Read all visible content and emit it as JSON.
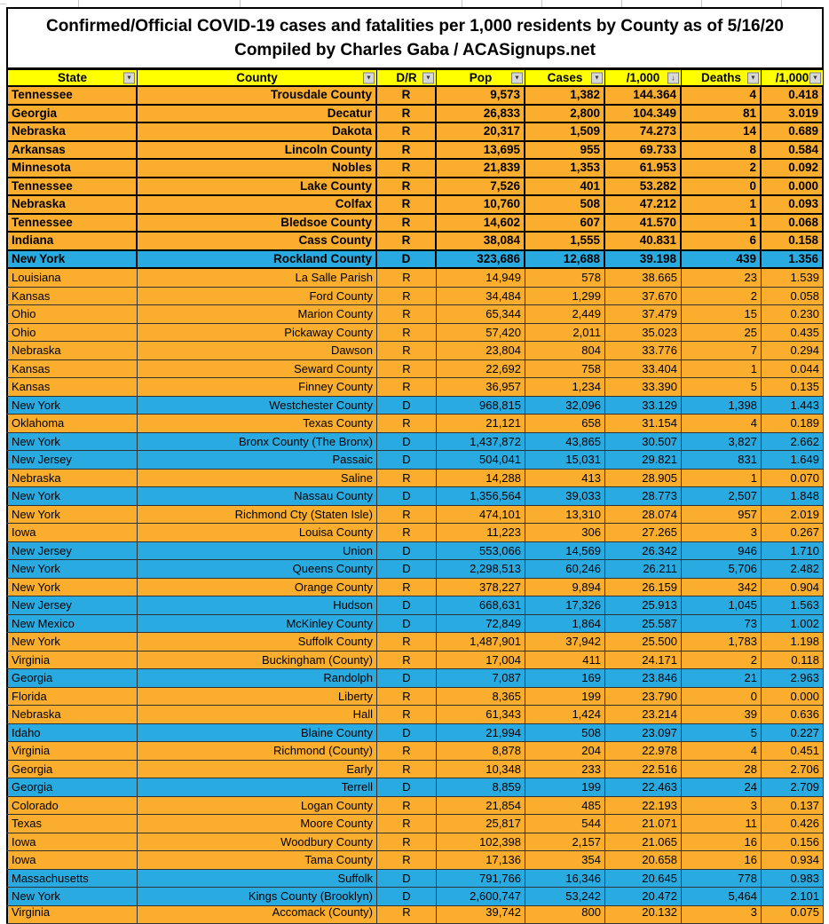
{
  "title": {
    "line1": "Confirmed/Official COVID-19 cases and fatalities per 1,000 residents by County as of 5/16/20",
    "line2": "Compiled by Charles Gaba / ACASignups.net"
  },
  "colors": {
    "republican_row": "#FBAE2D",
    "democrat_row": "#29ABE2",
    "header_bg": "#FFFF00"
  },
  "icons": {
    "filter-icon": "▼",
    "sort-desc-icon": "↓"
  },
  "table": {
    "columns": [
      {
        "label": "State",
        "icon": "filter-icon"
      },
      {
        "label": "County",
        "icon": "filter-icon"
      },
      {
        "label": "D/R",
        "icon": "filter-icon"
      },
      {
        "label": "Pop",
        "icon": "filter-icon"
      },
      {
        "label": "Cases",
        "icon": "filter-icon"
      },
      {
        "label": "/1,000",
        "icon": "sort-desc-icon"
      },
      {
        "label": "Deaths",
        "icon": "filter-icon"
      },
      {
        "label": "/1,000",
        "icon": "filter-icon"
      }
    ],
    "rows": [
      {
        "state": "Tennessee",
        "county": "Trousdale County",
        "party": "R",
        "pop": "9,573",
        "cases": "1,382",
        "per1000": "144.364",
        "deaths": "4",
        "deaths_per1000": "0.418",
        "bold": true
      },
      {
        "state": "Georgia",
        "county": "Decatur",
        "party": "R",
        "pop": "26,833",
        "cases": "2,800",
        "per1000": "104.349",
        "deaths": "81",
        "deaths_per1000": "3.019",
        "bold": true
      },
      {
        "state": "Nebraska",
        "county": "Dakota",
        "party": "R",
        "pop": "20,317",
        "cases": "1,509",
        "per1000": "74.273",
        "deaths": "14",
        "deaths_per1000": "0.689",
        "bold": true
      },
      {
        "state": "Arkansas",
        "county": "Lincoln County",
        "party": "R",
        "pop": "13,695",
        "cases": "955",
        "per1000": "69.733",
        "deaths": "8",
        "deaths_per1000": "0.584",
        "bold": true
      },
      {
        "state": "Minnesota",
        "county": "Nobles",
        "party": "R",
        "pop": "21,839",
        "cases": "1,353",
        "per1000": "61.953",
        "deaths": "2",
        "deaths_per1000": "0.092",
        "bold": true
      },
      {
        "state": "Tennessee",
        "county": "Lake County",
        "party": "R",
        "pop": "7,526",
        "cases": "401",
        "per1000": "53.282",
        "deaths": "0",
        "deaths_per1000": "0.000",
        "bold": true
      },
      {
        "state": "Nebraska",
        "county": "Colfax",
        "party": "R",
        "pop": "10,760",
        "cases": "508",
        "per1000": "47.212",
        "deaths": "1",
        "deaths_per1000": "0.093",
        "bold": true
      },
      {
        "state": "Tennessee",
        "county": "Bledsoe County",
        "party": "R",
        "pop": "14,602",
        "cases": "607",
        "per1000": "41.570",
        "deaths": "1",
        "deaths_per1000": "0.068",
        "bold": true
      },
      {
        "state": "Indiana",
        "county": "Cass County",
        "party": "R",
        "pop": "38,084",
        "cases": "1,555",
        "per1000": "40.831",
        "deaths": "6",
        "deaths_per1000": "0.158",
        "bold": true
      },
      {
        "state": "New York",
        "county": "Rockland County",
        "party": "D",
        "pop": "323,686",
        "cases": "12,688",
        "per1000": "39.198",
        "deaths": "439",
        "deaths_per1000": "1.356",
        "bold": true
      },
      {
        "state": "Louisiana",
        "county": "La Salle Parish",
        "party": "R",
        "pop": "14,949",
        "cases": "578",
        "per1000": "38.665",
        "deaths": "23",
        "deaths_per1000": "1.539",
        "bold": false
      },
      {
        "state": "Kansas",
        "county": "Ford County",
        "party": "R",
        "pop": "34,484",
        "cases": "1,299",
        "per1000": "37.670",
        "deaths": "2",
        "deaths_per1000": "0.058",
        "bold": false
      },
      {
        "state": "Ohio",
        "county": "Marion County",
        "party": "R",
        "pop": "65,344",
        "cases": "2,449",
        "per1000": "37.479",
        "deaths": "15",
        "deaths_per1000": "0.230",
        "bold": false
      },
      {
        "state": "Ohio",
        "county": "Pickaway County",
        "party": "R",
        "pop": "57,420",
        "cases": "2,011",
        "per1000": "35.023",
        "deaths": "25",
        "deaths_per1000": "0.435",
        "bold": false
      },
      {
        "state": "Nebraska",
        "county": "Dawson",
        "party": "R",
        "pop": "23,804",
        "cases": "804",
        "per1000": "33.776",
        "deaths": "7",
        "deaths_per1000": "0.294",
        "bold": false
      },
      {
        "state": "Kansas",
        "county": "Seward County",
        "party": "R",
        "pop": "22,692",
        "cases": "758",
        "per1000": "33.404",
        "deaths": "1",
        "deaths_per1000": "0.044",
        "bold": false
      },
      {
        "state": "Kansas",
        "county": "Finney County",
        "party": "R",
        "pop": "36,957",
        "cases": "1,234",
        "per1000": "33.390",
        "deaths": "5",
        "deaths_per1000": "0.135",
        "bold": false
      },
      {
        "state": "New York",
        "county": "Westchester County",
        "party": "D",
        "pop": "968,815",
        "cases": "32,096",
        "per1000": "33.129",
        "deaths": "1,398",
        "deaths_per1000": "1.443",
        "bold": false
      },
      {
        "state": "Oklahoma",
        "county": "Texas County",
        "party": "R",
        "pop": "21,121",
        "cases": "658",
        "per1000": "31.154",
        "deaths": "4",
        "deaths_per1000": "0.189",
        "bold": false
      },
      {
        "state": "New York",
        "county": "Bronx County (The Bronx)",
        "party": "D",
        "pop": "1,437,872",
        "cases": "43,865",
        "per1000": "30.507",
        "deaths": "3,827",
        "deaths_per1000": "2.662",
        "bold": false
      },
      {
        "state": "New Jersey",
        "county": "Passaic",
        "party": "D",
        "pop": "504,041",
        "cases": "15,031",
        "per1000": "29.821",
        "deaths": "831",
        "deaths_per1000": "1.649",
        "bold": false
      },
      {
        "state": "Nebraska",
        "county": "Saline",
        "party": "R",
        "pop": "14,288",
        "cases": "413",
        "per1000": "28.905",
        "deaths": "1",
        "deaths_per1000": "0.070",
        "bold": false
      },
      {
        "state": "New York",
        "county": "Nassau County",
        "party": "D",
        "pop": "1,356,564",
        "cases": "39,033",
        "per1000": "28.773",
        "deaths": "2,507",
        "deaths_per1000": "1.848",
        "bold": false
      },
      {
        "state": "New York",
        "county": "Richmond Cty (Staten Isle)",
        "party": "R",
        "pop": "474,101",
        "cases": "13,310",
        "per1000": "28.074",
        "deaths": "957",
        "deaths_per1000": "2.019",
        "bold": false
      },
      {
        "state": "Iowa",
        "county": "Louisa County",
        "party": "R",
        "pop": "11,223",
        "cases": "306",
        "per1000": "27.265",
        "deaths": "3",
        "deaths_per1000": "0.267",
        "bold": false
      },
      {
        "state": "New Jersey",
        "county": "Union",
        "party": "D",
        "pop": "553,066",
        "cases": "14,569",
        "per1000": "26.342",
        "deaths": "946",
        "deaths_per1000": "1.710",
        "bold": false
      },
      {
        "state": "New York",
        "county": "Queens County",
        "party": "D",
        "pop": "2,298,513",
        "cases": "60,246",
        "per1000": "26.211",
        "deaths": "5,706",
        "deaths_per1000": "2.482",
        "bold": false
      },
      {
        "state": "New York",
        "county": "Orange County",
        "party": "R",
        "pop": "378,227",
        "cases": "9,894",
        "per1000": "26.159",
        "deaths": "342",
        "deaths_per1000": "0.904",
        "bold": false
      },
      {
        "state": "New Jersey",
        "county": "Hudson",
        "party": "D",
        "pop": "668,631",
        "cases": "17,326",
        "per1000": "25.913",
        "deaths": "1,045",
        "deaths_per1000": "1.563",
        "bold": false
      },
      {
        "state": "New Mexico",
        "county": "McKinley County",
        "party": "D",
        "pop": "72,849",
        "cases": "1,864",
        "per1000": "25.587",
        "deaths": "73",
        "deaths_per1000": "1.002",
        "bold": false
      },
      {
        "state": "New York",
        "county": "Suffolk County",
        "party": "R",
        "pop": "1,487,901",
        "cases": "37,942",
        "per1000": "25.500",
        "deaths": "1,783",
        "deaths_per1000": "1.198",
        "bold": false
      },
      {
        "state": "Virginia",
        "county": "Buckingham (County)",
        "party": "R",
        "pop": "17,004",
        "cases": "411",
        "per1000": "24.171",
        "deaths": "2",
        "deaths_per1000": "0.118",
        "bold": false
      },
      {
        "state": "Georgia",
        "county": "Randolph",
        "party": "D",
        "pop": "7,087",
        "cases": "169",
        "per1000": "23.846",
        "deaths": "21",
        "deaths_per1000": "2.963",
        "bold": false
      },
      {
        "state": "Florida",
        "county": "Liberty",
        "party": "R",
        "pop": "8,365",
        "cases": "199",
        "per1000": "23.790",
        "deaths": "0",
        "deaths_per1000": "0.000",
        "bold": false
      },
      {
        "state": "Nebraska",
        "county": "Hall",
        "party": "R",
        "pop": "61,343",
        "cases": "1,424",
        "per1000": "23.214",
        "deaths": "39",
        "deaths_per1000": "0.636",
        "bold": false
      },
      {
        "state": "Idaho",
        "county": "Blaine County",
        "party": "D",
        "pop": "21,994",
        "cases": "508",
        "per1000": "23.097",
        "deaths": "5",
        "deaths_per1000": "0.227",
        "bold": false
      },
      {
        "state": "Virginia",
        "county": "Richmond (County)",
        "party": "R",
        "pop": "8,878",
        "cases": "204",
        "per1000": "22.978",
        "deaths": "4",
        "deaths_per1000": "0.451",
        "bold": false
      },
      {
        "state": "Georgia",
        "county": "Early",
        "party": "R",
        "pop": "10,348",
        "cases": "233",
        "per1000": "22.516",
        "deaths": "28",
        "deaths_per1000": "2.706",
        "bold": false
      },
      {
        "state": "Georgia",
        "county": "Terrell",
        "party": "D",
        "pop": "8,859",
        "cases": "199",
        "per1000": "22.463",
        "deaths": "24",
        "deaths_per1000": "2.709",
        "bold": false
      },
      {
        "state": "Colorado",
        "county": "Logan County",
        "party": "R",
        "pop": "21,854",
        "cases": "485",
        "per1000": "22.193",
        "deaths": "3",
        "deaths_per1000": "0.137",
        "bold": false
      },
      {
        "state": "Texas",
        "county": "Moore County",
        "party": "R",
        "pop": "25,817",
        "cases": "544",
        "per1000": "21.071",
        "deaths": "11",
        "deaths_per1000": "0.426",
        "bold": false
      },
      {
        "state": "Iowa",
        "county": "Woodbury County",
        "party": "R",
        "pop": "102,398",
        "cases": "2,157",
        "per1000": "21.065",
        "deaths": "16",
        "deaths_per1000": "0.156",
        "bold": false
      },
      {
        "state": "Iowa",
        "county": "Tama County",
        "party": "R",
        "pop": "17,136",
        "cases": "354",
        "per1000": "20.658",
        "deaths": "16",
        "deaths_per1000": "0.934",
        "bold": false
      },
      {
        "state": "Massachusetts",
        "county": "Suffolk",
        "party": "D",
        "pop": "791,766",
        "cases": "16,346",
        "per1000": "20.645",
        "deaths": "778",
        "deaths_per1000": "0.983",
        "bold": false
      },
      {
        "state": "New York",
        "county": "Kings County (Brooklyn)",
        "party": "D",
        "pop": "2,600,747",
        "cases": "53,242",
        "per1000": "20.472",
        "deaths": "5,464",
        "deaths_per1000": "2.101",
        "bold": false
      }
    ],
    "partial_row": {
      "state": "Virginia",
      "county": "Accomack (County)",
      "party": "R",
      "pop": "39,742",
      "cases": "800",
      "per1000": "20.132",
      "deaths": "3",
      "deaths_per1000": "0.075",
      "bold": false
    }
  }
}
